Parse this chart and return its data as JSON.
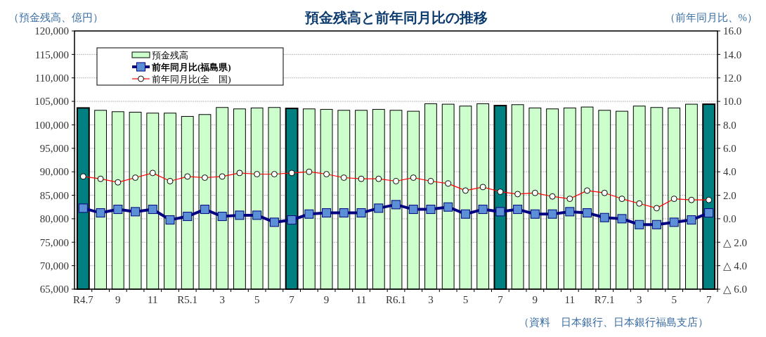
{
  "chart_data": {
    "type": "bar",
    "title": "預金残高と前年同月比の推移",
    "ylabel": "（預金残高、億円）",
    "y2label": "（前年同月比、%）",
    "categories": [
      "R4.7",
      null,
      "9",
      null,
      "11",
      null,
      "R5.1",
      null,
      "3",
      null,
      "5",
      null,
      "7",
      null,
      "9",
      null,
      "11",
      null,
      "R6.1",
      null,
      "3",
      null,
      "5",
      null,
      "7",
      null,
      "9",
      null,
      "11",
      null,
      "R7.1",
      null,
      "3",
      null,
      "5",
      null,
      "7"
    ],
    "series": [
      {
        "name": "預金残高",
        "color": "#ccffcc",
        "colors": [
          "#008080",
          "#ccffcc",
          "#ccffcc",
          "#ccffcc",
          "#ccffcc",
          "#ccffcc",
          "#ccffcc",
          "#ccffcc",
          "#ccffcc",
          "#ccffcc",
          "#ccffcc",
          "#ccffcc",
          "#008080",
          "#ccffcc",
          "#ccffcc",
          "#ccffcc",
          "#ccffcc",
          "#ccffcc",
          "#ccffcc",
          "#ccffcc",
          "#ccffcc",
          "#ccffcc",
          "#ccffcc",
          "#ccffcc",
          "#008080",
          "#ccffcc",
          "#ccffcc",
          "#ccffcc",
          "#ccffcc",
          "#ccffcc",
          "#ccffcc",
          "#ccffcc",
          "#ccffcc",
          "#ccffcc",
          "#ccffcc",
          "#ccffcc",
          "#008080"
        ],
        "values": [
          103600,
          103100,
          102800,
          102700,
          102500,
          102500,
          101800,
          102200,
          103700,
          103400,
          103600,
          103700,
          103500,
          103400,
          103300,
          103100,
          103100,
          103300,
          103100,
          102900,
          104500,
          104400,
          104000,
          104500,
          104100,
          104300,
          103600,
          103400,
          103600,
          103800,
          103100,
          102900,
          104000,
          103700,
          103600,
          104400,
          104400
        ]
      },
      {
        "name": "前年同月比(福島県)",
        "type": "line",
        "axis": "y2",
        "color": "#000080",
        "marker": "square",
        "values": [
          0.9,
          0.5,
          0.8,
          0.6,
          0.8,
          -0.1,
          0.2,
          0.8,
          0.2,
          0.3,
          0.3,
          -0.3,
          -0.1,
          0.4,
          0.5,
          0.5,
          0.5,
          0.9,
          1.2,
          0.8,
          0.8,
          1.0,
          0.4,
          0.8,
          0.6,
          0.8,
          0.4,
          0.4,
          0.6,
          0.5,
          0.1,
          0.0,
          -0.5,
          -0.5,
          -0.3,
          -0.1,
          0.5
        ]
      },
      {
        "name": "前年同月比(全　国)",
        "type": "line",
        "axis": "y2",
        "color": "#ff0000",
        "marker": "circle",
        "values": [
          3.6,
          3.4,
          3.1,
          3.5,
          3.9,
          3.2,
          3.6,
          3.5,
          3.6,
          3.9,
          3.8,
          3.8,
          3.9,
          4.0,
          3.8,
          3.5,
          3.4,
          3.4,
          3.2,
          3.5,
          3.2,
          3.0,
          2.4,
          2.7,
          2.3,
          2.1,
          2.2,
          1.9,
          1.7,
          2.4,
          2.2,
          1.7,
          1.3,
          0.9,
          1.7,
          1.6,
          1.6
        ]
      }
    ],
    "ylim": [
      65000,
      120000
    ],
    "yticks": [
      {
        "value": 65000,
        "label": "65,000"
      },
      {
        "value": 70000,
        "label": "70,000"
      },
      {
        "value": 75000,
        "label": "75,000"
      },
      {
        "value": 80000,
        "label": "80,000"
      },
      {
        "value": 85000,
        "label": "85,000"
      },
      {
        "value": 90000,
        "label": "90,000"
      },
      {
        "value": 95000,
        "label": "95,000"
      },
      {
        "value": 100000,
        "label": "100,000"
      },
      {
        "value": 105000,
        "label": "105,000"
      },
      {
        "value": 110000,
        "label": "110,000"
      },
      {
        "value": 115000,
        "label": "115,000"
      },
      {
        "value": 120000,
        "label": "120,000"
      }
    ],
    "y2lim": [
      -6,
      16
    ],
    "y2ticks": [
      {
        "value": -6,
        "label": "△ 6.0"
      },
      {
        "value": -4,
        "label": "△ 4.0"
      },
      {
        "value": -2,
        "label": "△ 2.0"
      },
      {
        "value": 0,
        "label": "0.0"
      },
      {
        "value": 2,
        "label": "2.0"
      },
      {
        "value": 4,
        "label": "4.0"
      },
      {
        "value": 6,
        "label": "6.0"
      },
      {
        "value": 8,
        "label": "8.0"
      },
      {
        "value": 10,
        "label": "10.0"
      },
      {
        "value": 12,
        "label": "12.0"
      },
      {
        "value": 14,
        "label": "14.0"
      },
      {
        "value": 16,
        "label": "16.0"
      }
    ],
    "grid": "y",
    "legend": "top left",
    "annotations": [
      "（資料　日本銀行、日本銀行福島支店）"
    ]
  }
}
